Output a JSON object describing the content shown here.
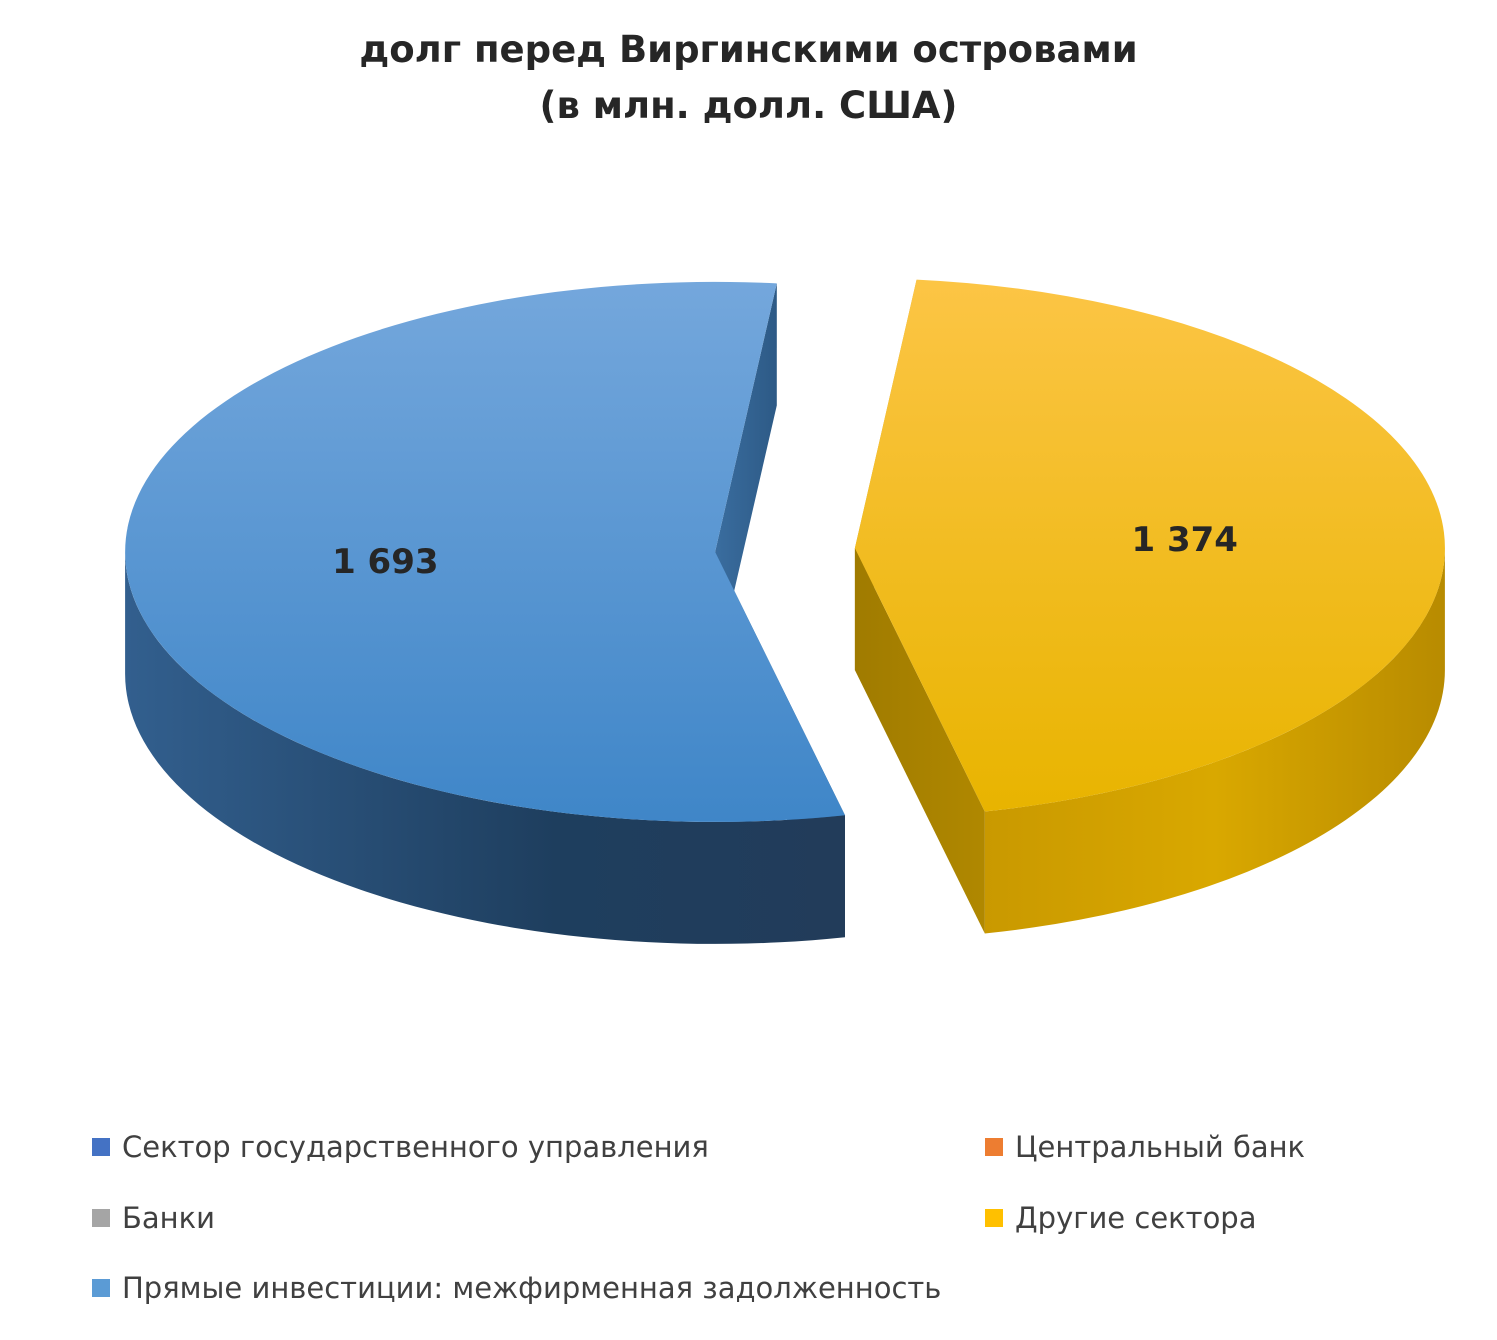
{
  "chart_data": {
    "type": "pie",
    "title": "долг перед Виргинскими островами",
    "subtitle": "(в млн. долл. США)",
    "legend_position": "bottom",
    "categories": [
      "Сектор государственного управления",
      "Центральный банк",
      "Банки",
      "Другие сектора",
      "Прямые инвестиции: межфирменная задолженность"
    ],
    "values": [
      0,
      0,
      0,
      1374,
      1693
    ],
    "data_labels": [
      "",
      "",
      "",
      "1 374",
      "1 693"
    ],
    "colors": [
      "#4472c4",
      "#ed7d31",
      "#a5a5a5",
      "#ffc000",
      "#5b9bd5"
    ]
  }
}
